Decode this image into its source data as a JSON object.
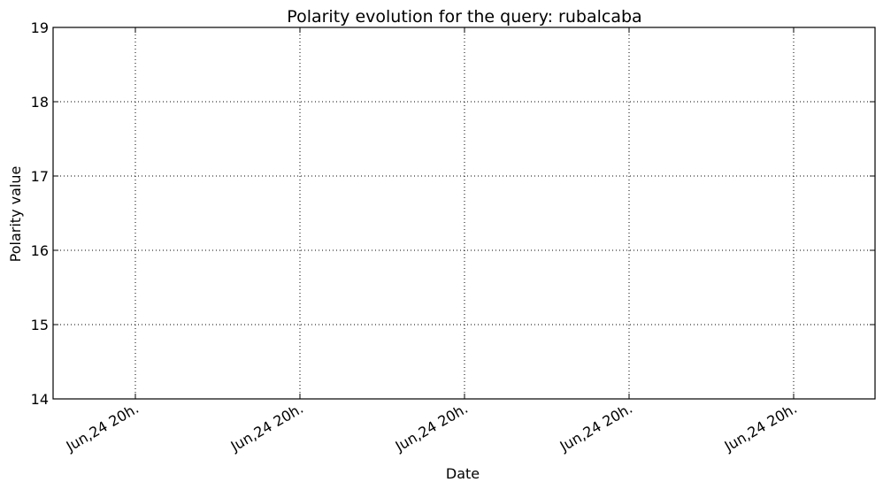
{
  "chart_data": {
    "type": "line",
    "title": "Polarity evolution for the query: rubalcaba",
    "xlabel": "Date",
    "ylabel": "Polarity value",
    "ylim": [
      14,
      19
    ],
    "yticks": [
      14,
      15,
      16,
      17,
      18,
      19
    ],
    "xticks": [
      "Jun,24 20h.",
      "Jun,24 20h.",
      "Jun,24 20h.",
      "Jun,24 20h.",
      "Jun,24 20h."
    ],
    "series": [],
    "grid": true,
    "colors": {
      "background": "#ffffff",
      "frame": "#000000",
      "grid": "#000000",
      "text": "#000000"
    }
  }
}
